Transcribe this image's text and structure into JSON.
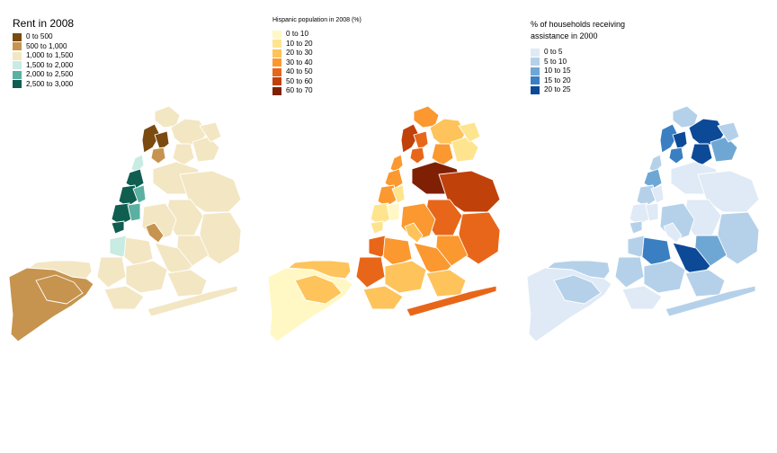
{
  "panels": [
    {
      "legend": {
        "title": "Rent in 2008",
        "items": [
          {
            "label": "0 to 500",
            "color": "#7a4a10"
          },
          {
            "label": "500 to 1,000",
            "color": "#c6944e"
          },
          {
            "label": "1,000 to 1,500",
            "color": "#f3e6c3"
          },
          {
            "label": "1,500 to 2,000",
            "color": "#c8ebe3"
          },
          {
            "label": "2,000 to 2,500",
            "color": "#5ab0a1"
          },
          {
            "label": "2,500 to 3,000",
            "color": "#0f5e50"
          }
        ]
      }
    },
    {
      "legend": {
        "title": "Hispanic population in 2008 (%)",
        "items": [
          {
            "label": "0 to 10",
            "color": "#fff8c4"
          },
          {
            "label": "10 to 20",
            "color": "#fee48e"
          },
          {
            "label": "20 to 30",
            "color": "#fec35a"
          },
          {
            "label": "30 to 40",
            "color": "#fb9830"
          },
          {
            "label": "40 to 50",
            "color": "#e8661a"
          },
          {
            "label": "50 to 60",
            "color": "#c0410a"
          },
          {
            "label": "60 to 70",
            "color": "#7f2005"
          }
        ]
      }
    },
    {
      "legend": {
        "title": "% of households receiving\nassistance in 2000",
        "items": [
          {
            "label": "0 to 5",
            "color": "#dfeaf6"
          },
          {
            "label": "5 to 10",
            "color": "#b5d1ea"
          },
          {
            "label": "10 to 15",
            "color": "#6fa7d4"
          },
          {
            "label": "15 to 20",
            "color": "#3a7fc1"
          },
          {
            "label": "20 to 25",
            "color": "#0c4a98"
          }
        ]
      }
    }
  ]
}
